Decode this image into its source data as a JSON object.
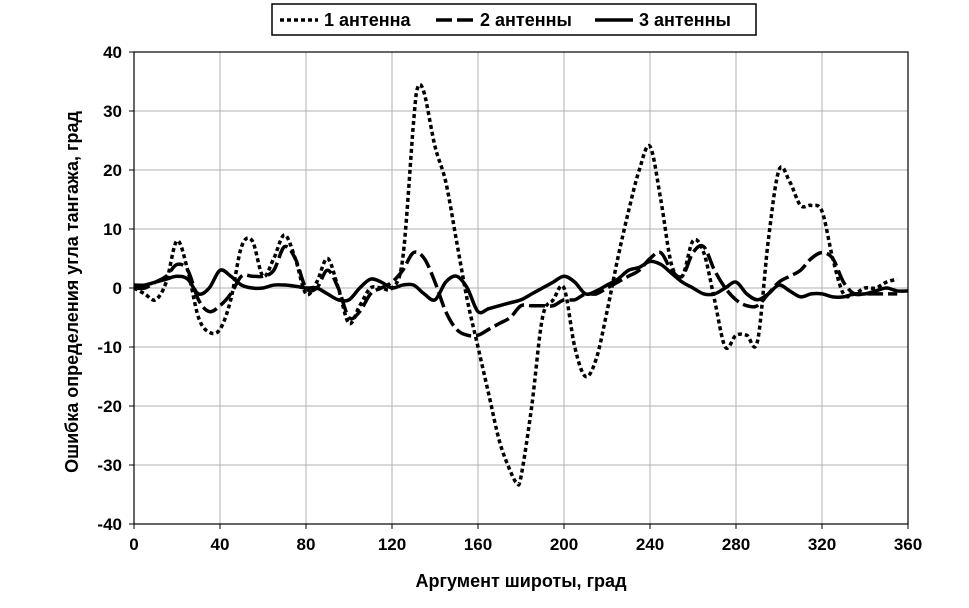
{
  "chart_data": {
    "type": "line",
    "title": "",
    "xlabel": "Аргумент широты, град",
    "ylabel": "Ошибка определения угла тангажа, град",
    "xlim": [
      0,
      360
    ],
    "ylim": [
      -40,
      40
    ],
    "x_ticks": [
      "0",
      "40",
      "80",
      "120",
      "160",
      "200",
      "240",
      "280",
      "320",
      "360"
    ],
    "y_ticks": [
      "40",
      "30",
      "20",
      "10",
      "0",
      "-10",
      "-20",
      "-30",
      "-40"
    ],
    "grid": true,
    "legend_position": "top",
    "series": [
      {
        "name": "1 антенна",
        "style": "dotted",
        "color": "#000000",
        "x": [
          0,
          5,
          10,
          15,
          20,
          25,
          30,
          35,
          40,
          45,
          50,
          55,
          60,
          65,
          70,
          75,
          80,
          85,
          90,
          95,
          100,
          105,
          110,
          115,
          120,
          125,
          130,
          132,
          135,
          140,
          145,
          150,
          155,
          160,
          165,
          170,
          175,
          178,
          180,
          185,
          190,
          195,
          200,
          205,
          210,
          215,
          220,
          225,
          230,
          235,
          240,
          245,
          250,
          255,
          260,
          265,
          270,
          275,
          280,
          285,
          290,
          295,
          300,
          305,
          310,
          315,
          320,
          325,
          330,
          335,
          340,
          345,
          350,
          355
        ],
        "y": [
          0,
          -1,
          -2,
          1,
          8,
          3,
          -5,
          -7.5,
          -7,
          -2,
          7,
          8,
          2,
          5,
          9,
          5,
          -1,
          1,
          5,
          0,
          -6,
          -3,
          0,
          0,
          0,
          5,
          28,
          34,
          33,
          24,
          18,
          8,
          -2,
          -10,
          -18,
          -26,
          -31,
          -33,
          -32,
          -20,
          -5,
          -2,
          0,
          -10,
          -15,
          -12,
          -4,
          5,
          13,
          20,
          24,
          15,
          4,
          2,
          8,
          6,
          -2,
          -10,
          -8,
          -8,
          -9,
          8,
          20,
          18,
          14,
          14,
          13,
          5,
          -1,
          -1,
          0,
          0,
          1,
          1.5
        ]
      },
      {
        "name": "2 антенны",
        "style": "dashed",
        "color": "#000000",
        "x": [
          0,
          5,
          10,
          15,
          20,
          25,
          30,
          35,
          40,
          45,
          50,
          55,
          60,
          65,
          70,
          75,
          80,
          85,
          90,
          95,
          100,
          105,
          110,
          115,
          120,
          125,
          130,
          135,
          140,
          145,
          150,
          155,
          160,
          165,
          170,
          175,
          180,
          185,
          190,
          195,
          200,
          205,
          210,
          215,
          220,
          225,
          230,
          235,
          240,
          245,
          250,
          255,
          260,
          265,
          270,
          275,
          280,
          285,
          290,
          295,
          300,
          305,
          310,
          315,
          320,
          325,
          330,
          335,
          340,
          345,
          350,
          355
        ],
        "y": [
          0,
          0,
          1,
          2,
          4,
          3,
          -2,
          -4,
          -3,
          -1,
          2,
          2,
          2,
          3,
          7,
          5,
          0,
          0,
          3,
          0,
          -5,
          -4,
          -1,
          0,
          1,
          3,
          6,
          5,
          1,
          -4,
          -7,
          -8,
          -8,
          -7,
          -6,
          -5,
          -3,
          -3,
          -3,
          -3,
          -2,
          -2,
          -1,
          -1,
          0,
          1,
          2,
          3,
          5,
          6,
          3,
          2,
          6,
          7,
          3,
          0,
          -2,
          -3,
          -3,
          -1,
          1,
          2,
          3,
          5,
          6,
          5,
          1,
          -1,
          -1,
          -1,
          -1,
          -1
        ]
      },
      {
        "name": "3 антенны",
        "style": "solid",
        "color": "#000000",
        "x": [
          0,
          5,
          10,
          15,
          20,
          25,
          30,
          35,
          40,
          45,
          50,
          55,
          60,
          65,
          70,
          75,
          80,
          85,
          90,
          95,
          100,
          105,
          110,
          115,
          120,
          125,
          130,
          135,
          140,
          145,
          150,
          155,
          160,
          165,
          170,
          175,
          180,
          185,
          190,
          195,
          200,
          205,
          210,
          215,
          220,
          225,
          230,
          235,
          240,
          245,
          250,
          255,
          260,
          265,
          270,
          275,
          280,
          285,
          290,
          295,
          300,
          305,
          310,
          315,
          320,
          325,
          330,
          335,
          340,
          345,
          350,
          355,
          360
        ],
        "y": [
          0.5,
          0.5,
          1,
          1.5,
          2,
          1.5,
          -1,
          0,
          3,
          2,
          0.5,
          0,
          0,
          0.5,
          0.5,
          0.3,
          0,
          0,
          -1,
          -2,
          -2,
          0,
          1.5,
          1,
          0,
          0.5,
          0.5,
          -1,
          -2,
          1,
          2,
          0,
          -4,
          -3.5,
          -3,
          -2.5,
          -2,
          -1,
          0,
          1,
          2,
          1,
          -1,
          -0.5,
          0.5,
          1.5,
          3,
          3.5,
          4.5,
          4,
          2.5,
          1,
          0,
          -1,
          -1,
          0,
          1,
          -1,
          -2,
          -1,
          0.5,
          -0.5,
          -1.5,
          -1,
          -1,
          -1.5,
          -1.5,
          -1,
          -1,
          -0.5,
          0,
          -0.5,
          -0.5
        ]
      }
    ]
  }
}
